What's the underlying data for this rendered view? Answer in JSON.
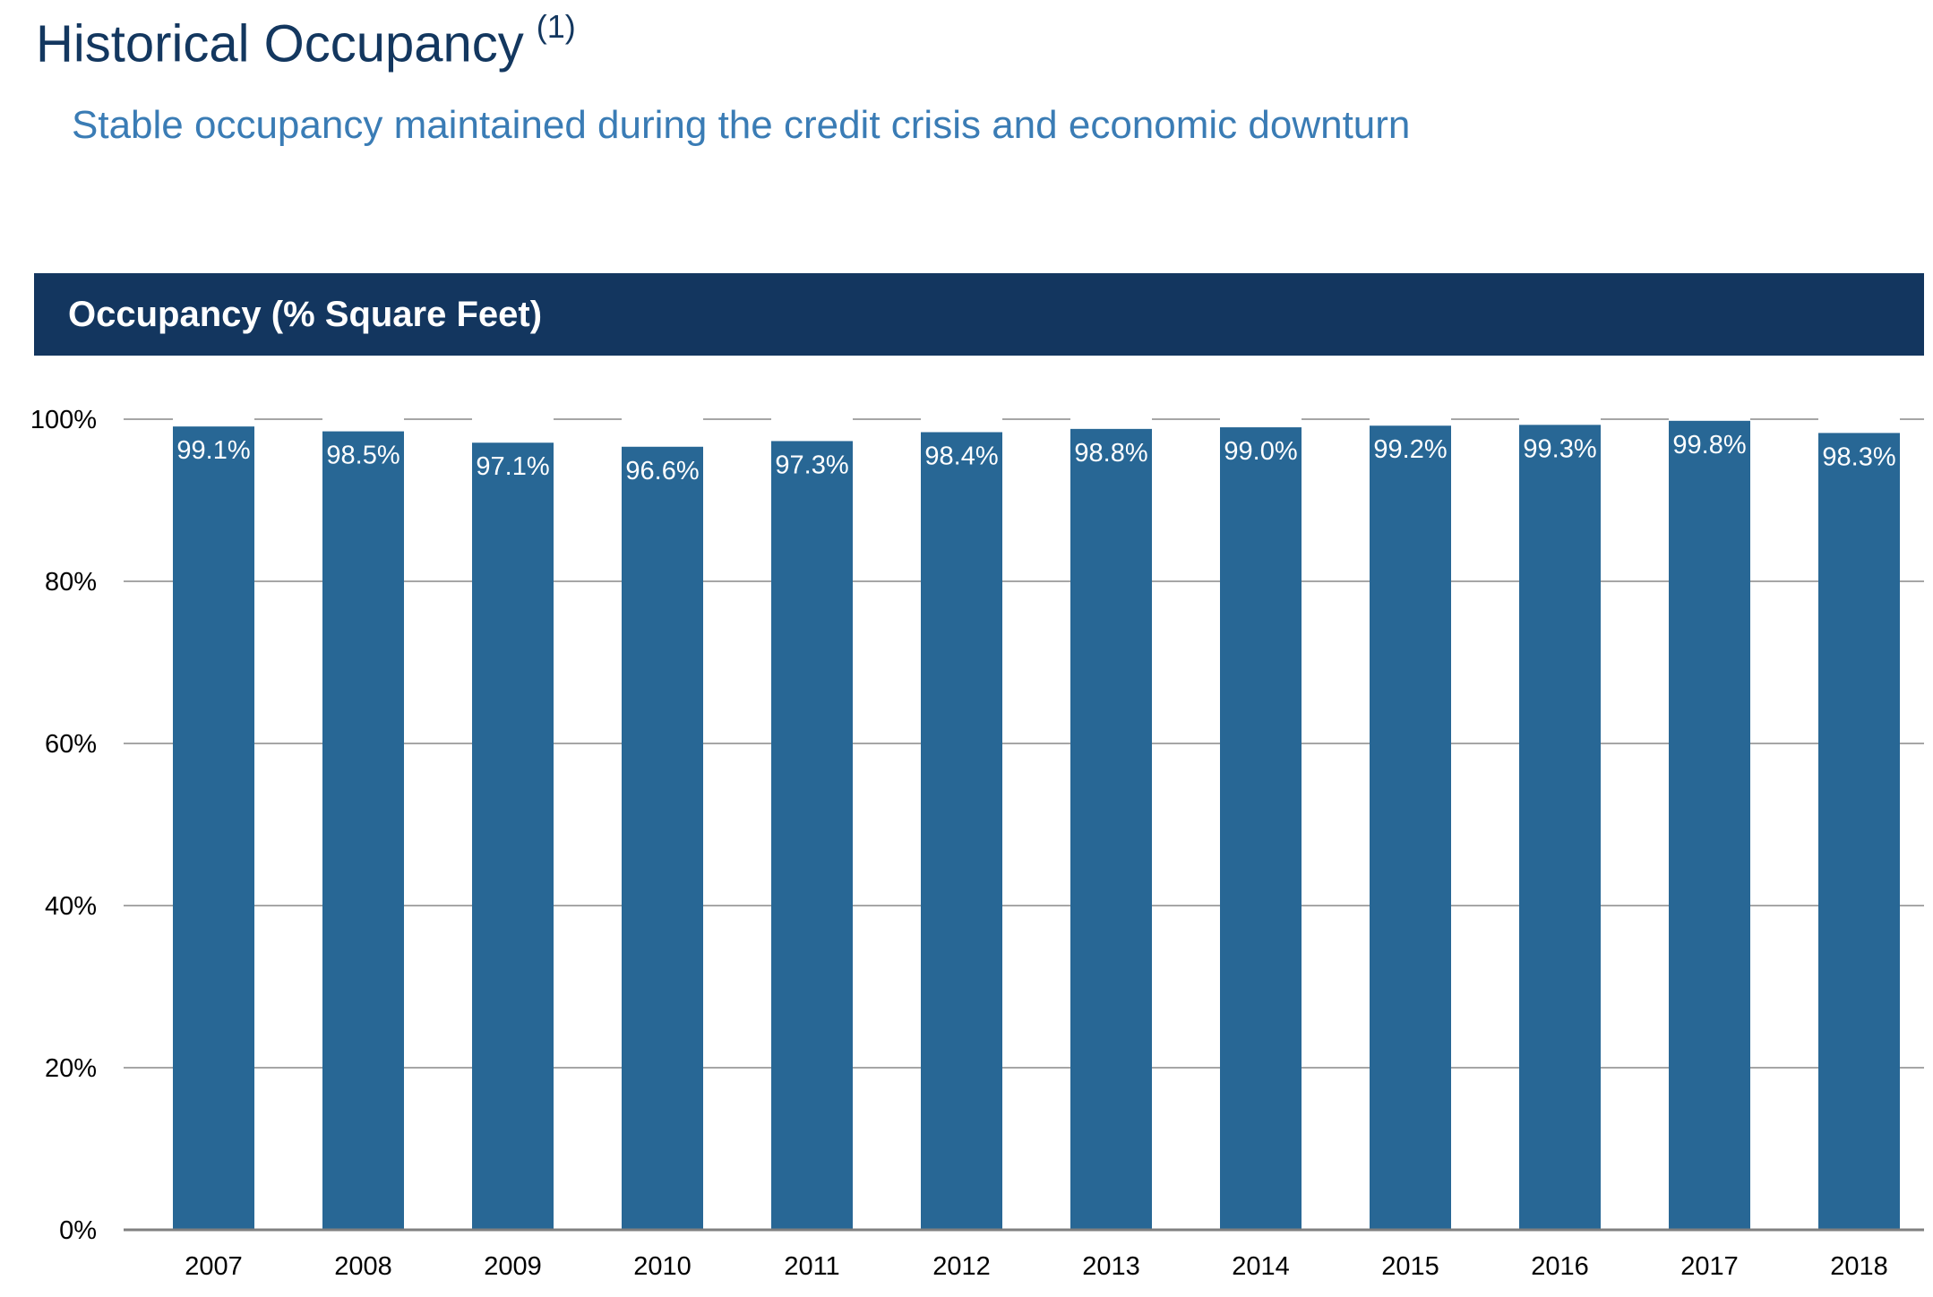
{
  "header": {
    "title": "Historical Occupancy",
    "footnote_marker": "(1)",
    "subtitle": "Stable occupancy maintained during the credit crisis and economic downturn"
  },
  "panel": {
    "title": "Occupancy (% Square Feet)"
  },
  "colors": {
    "title": "#13375f",
    "subtitle": "#3a7cb5",
    "panel_header": "#13365f",
    "bar": "#286795",
    "grid": "#a6a6a6",
    "axis": "#808080"
  },
  "chart_data": {
    "type": "bar",
    "categories": [
      "2007",
      "2008",
      "2009",
      "2010",
      "2011",
      "2012",
      "2013",
      "2014",
      "2015",
      "2016",
      "2017",
      "2018"
    ],
    "values": [
      99.1,
      98.5,
      97.1,
      96.6,
      97.3,
      98.4,
      98.8,
      99.0,
      99.2,
      99.3,
      99.8,
      98.3
    ],
    "data_labels": [
      "99.1%",
      "98.5%",
      "97.1%",
      "96.6%",
      "97.3%",
      "98.4%",
      "98.8%",
      "99.0%",
      "99.2%",
      "99.3%",
      "99.8%",
      "98.3%"
    ],
    "y_ticks": [
      0,
      20,
      40,
      60,
      80,
      100
    ],
    "y_tick_labels": [
      "0%",
      "20%",
      "40%",
      "60%",
      "80%",
      "100%"
    ],
    "ylim": [
      0,
      100
    ],
    "grid": true,
    "legend": "none"
  }
}
